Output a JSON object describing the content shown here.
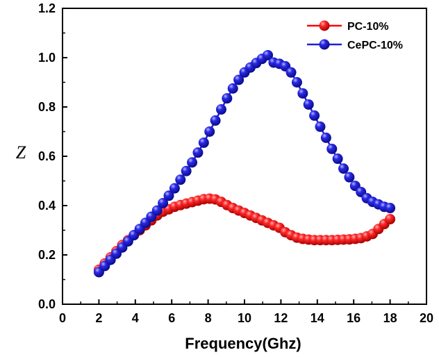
{
  "chart_data": {
    "type": "line",
    "title": "",
    "xlabel": "Frequency(Ghz)",
    "ylabel": "Z",
    "xlim": [
      0,
      20
    ],
    "ylim": [
      0,
      1.2
    ],
    "xticks": [
      "0",
      "2",
      "4",
      "6",
      "8",
      "10",
      "12",
      "14",
      "16",
      "18",
      "20"
    ],
    "yticks": [
      "0.0",
      "0.2",
      "0.4",
      "0.6",
      "0.8",
      "1.0",
      "1.2"
    ],
    "legend_position": "top-right",
    "grid": false,
    "series": [
      {
        "name": "PC-10%",
        "color": "#ff0000",
        "marker": "sphere",
        "x": [
          2.0,
          2.32,
          2.64,
          2.96,
          3.28,
          3.6,
          3.92,
          4.24,
          4.56,
          4.88,
          5.2,
          5.52,
          5.84,
          6.16,
          6.48,
          6.8,
          7.12,
          7.44,
          7.76,
          8.08,
          8.4,
          8.72,
          9.04,
          9.36,
          9.68,
          10.0,
          10.32,
          10.64,
          10.96,
          11.28,
          11.6,
          11.92,
          12.24,
          12.56,
          12.88,
          13.2,
          13.52,
          13.84,
          14.16,
          14.48,
          14.8,
          15.12,
          15.44,
          15.76,
          16.08,
          16.4,
          16.72,
          17.04,
          17.36,
          17.68,
          18.0
        ],
        "y": [
          0.14,
          0.165,
          0.19,
          0.215,
          0.24,
          0.26,
          0.28,
          0.3,
          0.32,
          0.34,
          0.36,
          0.375,
          0.385,
          0.395,
          0.402,
          0.408,
          0.414,
          0.42,
          0.426,
          0.428,
          0.425,
          0.415,
          0.402,
          0.39,
          0.38,
          0.37,
          0.36,
          0.35,
          0.34,
          0.33,
          0.32,
          0.31,
          0.292,
          0.28,
          0.27,
          0.265,
          0.262,
          0.26,
          0.26,
          0.26,
          0.26,
          0.261,
          0.262,
          0.263,
          0.265,
          0.268,
          0.275,
          0.285,
          0.305,
          0.325,
          0.345
        ]
      },
      {
        "name": "CePC-10%",
        "color": "#1f1fd6",
        "marker": "sphere",
        "x": [
          2.0,
          2.32,
          2.64,
          2.96,
          3.28,
          3.6,
          3.92,
          4.24,
          4.56,
          4.88,
          5.2,
          5.52,
          5.84,
          6.16,
          6.48,
          6.8,
          7.12,
          7.44,
          7.76,
          8.08,
          8.4,
          8.72,
          9.04,
          9.36,
          9.68,
          10.0,
          10.32,
          10.64,
          10.96,
          11.28,
          11.6,
          11.92,
          12.24,
          12.56,
          12.88,
          13.2,
          13.52,
          13.84,
          14.16,
          14.48,
          14.8,
          15.12,
          15.44,
          15.76,
          16.08,
          16.4,
          16.72,
          17.04,
          17.36,
          17.68,
          18.0
        ],
        "y": [
          0.13,
          0.155,
          0.18,
          0.205,
          0.23,
          0.255,
          0.28,
          0.305,
          0.33,
          0.355,
          0.38,
          0.41,
          0.44,
          0.47,
          0.505,
          0.54,
          0.575,
          0.615,
          0.655,
          0.7,
          0.745,
          0.79,
          0.835,
          0.875,
          0.91,
          0.94,
          0.96,
          0.978,
          0.995,
          1.01,
          0.98,
          0.975,
          0.965,
          0.94,
          0.9,
          0.855,
          0.81,
          0.765,
          0.72,
          0.675,
          0.63,
          0.59,
          0.55,
          0.515,
          0.48,
          0.455,
          0.43,
          0.415,
          0.405,
          0.395,
          0.39
        ]
      }
    ]
  }
}
